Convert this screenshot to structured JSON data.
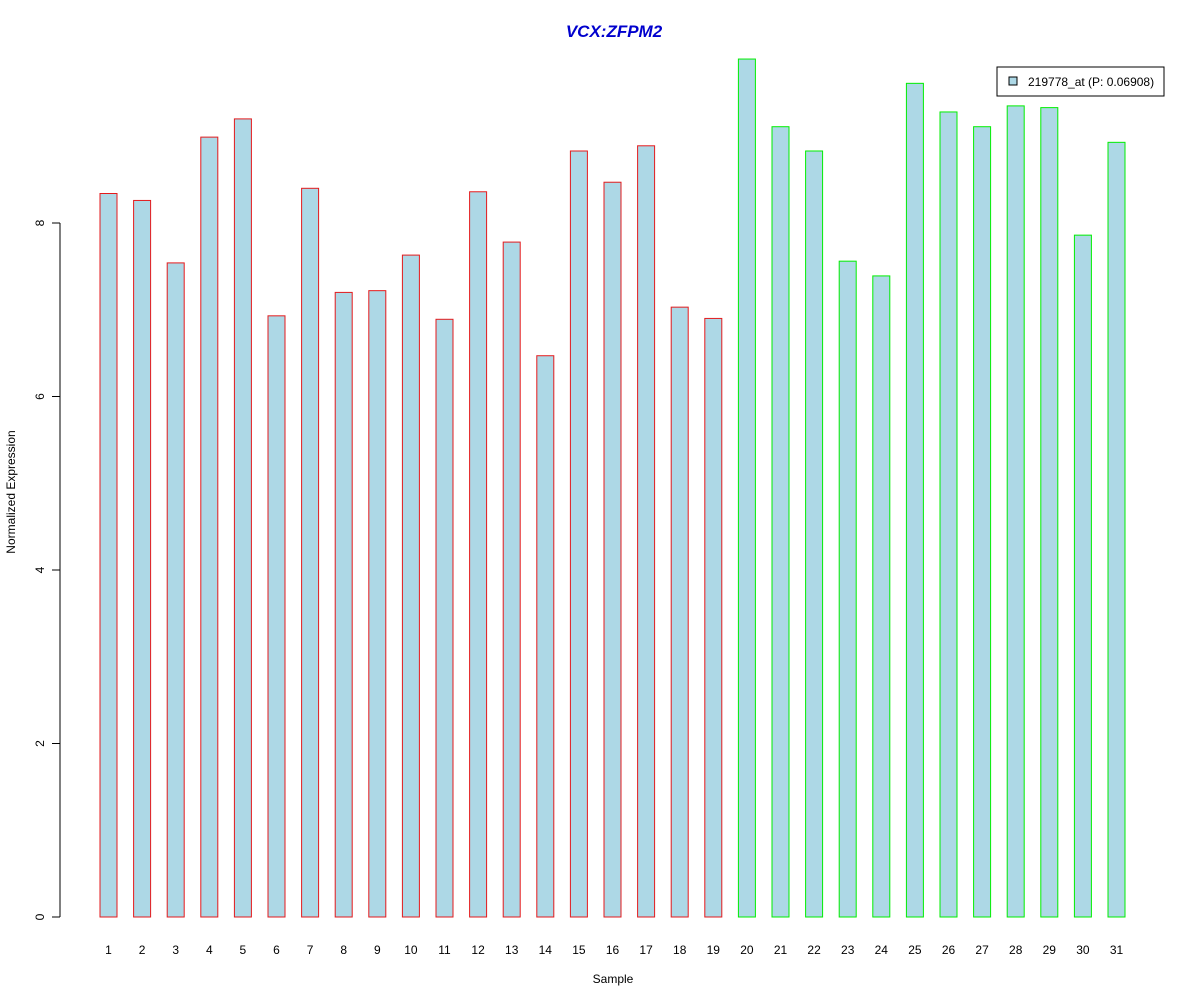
{
  "chart_data": {
    "type": "bar",
    "title": "VCX:ZFPM2",
    "xlabel": "Sample",
    "ylabel": "Normalized Expression",
    "ylim": [
      0,
      10
    ],
    "yticks": [
      0,
      2,
      4,
      6,
      8
    ],
    "grid": false,
    "legend_position": "top-right",
    "categories": [
      "1",
      "2",
      "3",
      "4",
      "5",
      "6",
      "7",
      "8",
      "9",
      "10",
      "11",
      "12",
      "13",
      "14",
      "15",
      "16",
      "17",
      "18",
      "19",
      "20",
      "21",
      "22",
      "23",
      "24",
      "25",
      "26",
      "27",
      "28",
      "29",
      "30",
      "31"
    ],
    "series": [
      {
        "name": "219778_at (P: 0.06908)",
        "fill": "#add8e6",
        "values": [
          8.34,
          8.26,
          7.54,
          8.99,
          9.2,
          6.93,
          8.4,
          7.2,
          7.22,
          7.63,
          6.89,
          8.36,
          7.78,
          6.47,
          8.83,
          8.47,
          8.89,
          7.03,
          6.9,
          9.89,
          9.11,
          8.83,
          7.56,
          7.39,
          9.61,
          9.28,
          9.11,
          9.35,
          9.33,
          7.86,
          8.93
        ],
        "groups": [
          "red",
          "red",
          "red",
          "red",
          "red",
          "red",
          "red",
          "red",
          "red",
          "red",
          "red",
          "red",
          "red",
          "red",
          "red",
          "red",
          "red",
          "red",
          "red",
          "green",
          "green",
          "green",
          "green",
          "green",
          "green",
          "green",
          "green",
          "green",
          "green",
          "green",
          "green"
        ]
      }
    ],
    "group_colors": {
      "red": "#e41a1c",
      "green": "#00ee00"
    },
    "title_color": "#0000cd"
  }
}
